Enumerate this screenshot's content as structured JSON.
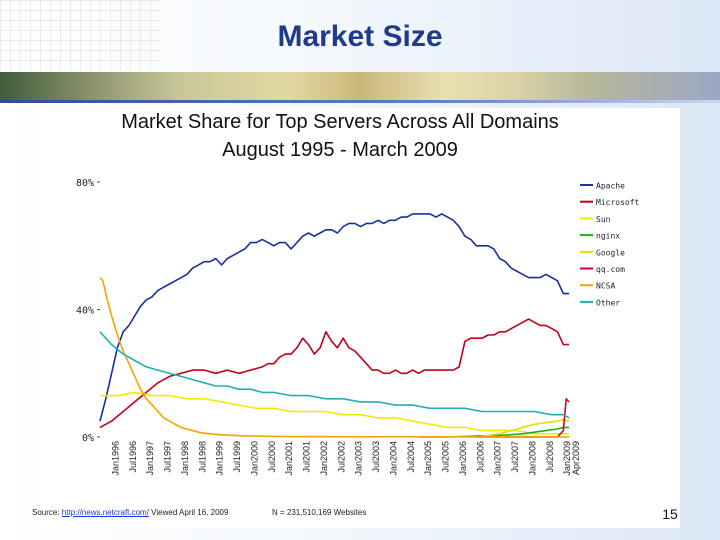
{
  "slide": {
    "title": "Market Size",
    "page_number": "15",
    "source_prefix": "Source: ",
    "source_link": "http://news.netcraft.com/",
    "source_suffix": " Viewed April 16, 2009",
    "sample_note": "N = 231,510,169 Websites"
  },
  "chart_data": {
    "type": "line",
    "title": "Market Share for Top Servers Across All Domains\nAugust 1995 - March 2009",
    "title_lines": [
      "Market Share for Top Servers Across All Domains",
      "August 1995 - March 2009"
    ],
    "ylabel": "",
    "xlabel": "",
    "ylim": [
      0,
      80
    ],
    "yticks": [
      "0%",
      "40%",
      "80%"
    ],
    "ytick_values": [
      0,
      40,
      80
    ],
    "grid": false,
    "legend_position": "right",
    "x_index_range": [
      0,
      163
    ],
    "x_tick_labels": [
      "Jan1996",
      "Jul1996",
      "Jan1997",
      "Jul1997",
      "Jan1998",
      "Jul1998",
      "Jan1999",
      "Jul1999",
      "Jan2000",
      "Jul2000",
      "Jan2001",
      "Jul2001",
      "Jan2002",
      "Jul2002",
      "Jan2003",
      "Jul2003",
      "Jan2004",
      "Jul2004",
      "Jan2005",
      "Jul2005",
      "Jan2006",
      "Jul2006",
      "Jan2007",
      "Jul2007",
      "Jan2008",
      "Jul2008",
      "Jan2009",
      "Apr2009"
    ],
    "x_tick_index": [
      5,
      11,
      17,
      23,
      29,
      35,
      41,
      47,
      53,
      59,
      65,
      71,
      77,
      83,
      89,
      95,
      101,
      107,
      113,
      119,
      125,
      131,
      137,
      143,
      149,
      155,
      161,
      164
    ],
    "series": [
      {
        "name": "Apache",
        "color": "#1a2fa0",
        "points": [
          [
            0,
            5
          ],
          [
            2,
            12
          ],
          [
            4,
            20
          ],
          [
            6,
            28
          ],
          [
            8,
            33
          ],
          [
            10,
            35
          ],
          [
            12,
            38
          ],
          [
            14,
            41
          ],
          [
            16,
            43
          ],
          [
            18,
            44
          ],
          [
            20,
            46
          ],
          [
            22,
            47
          ],
          [
            24,
            48
          ],
          [
            26,
            49
          ],
          [
            28,
            50
          ],
          [
            30,
            51
          ],
          [
            32,
            53
          ],
          [
            34,
            54
          ],
          [
            36,
            55
          ],
          [
            38,
            55
          ],
          [
            40,
            56
          ],
          [
            42,
            54
          ],
          [
            44,
            56
          ],
          [
            46,
            57
          ],
          [
            48,
            58
          ],
          [
            50,
            59
          ],
          [
            52,
            61
          ],
          [
            54,
            61
          ],
          [
            56,
            62
          ],
          [
            58,
            61
          ],
          [
            60,
            60
          ],
          [
            62,
            61
          ],
          [
            64,
            61
          ],
          [
            66,
            59
          ],
          [
            68,
            61
          ],
          [
            70,
            63
          ],
          [
            72,
            64
          ],
          [
            74,
            63
          ],
          [
            76,
            64
          ],
          [
            78,
            65
          ],
          [
            80,
            65
          ],
          [
            82,
            64
          ],
          [
            84,
            66
          ],
          [
            86,
            67
          ],
          [
            88,
            67
          ],
          [
            90,
            66
          ],
          [
            92,
            67
          ],
          [
            94,
            67
          ],
          [
            96,
            68
          ],
          [
            98,
            67
          ],
          [
            100,
            68
          ],
          [
            102,
            68
          ],
          [
            104,
            69
          ],
          [
            106,
            69
          ],
          [
            108,
            70
          ],
          [
            110,
            70
          ],
          [
            112,
            70
          ],
          [
            114,
            70
          ],
          [
            116,
            69
          ],
          [
            118,
            70
          ],
          [
            120,
            69
          ],
          [
            122,
            68
          ],
          [
            124,
            66
          ],
          [
            126,
            63
          ],
          [
            128,
            62
          ],
          [
            130,
            60
          ],
          [
            132,
            60
          ],
          [
            134,
            60
          ],
          [
            136,
            59
          ],
          [
            138,
            56
          ],
          [
            140,
            55
          ],
          [
            142,
            53
          ],
          [
            144,
            52
          ],
          [
            146,
            51
          ],
          [
            148,
            50
          ],
          [
            150,
            50
          ],
          [
            152,
            50
          ],
          [
            154,
            51
          ],
          [
            156,
            50
          ],
          [
            158,
            49
          ],
          [
            160,
            45
          ],
          [
            162,
            45
          ]
        ]
      },
      {
        "name": "Microsoft",
        "color": "#c0001a",
        "points": [
          [
            0,
            3
          ],
          [
            4,
            5
          ],
          [
            8,
            8
          ],
          [
            12,
            11
          ],
          [
            16,
            14
          ],
          [
            20,
            17
          ],
          [
            24,
            19
          ],
          [
            28,
            20
          ],
          [
            32,
            21
          ],
          [
            36,
            21
          ],
          [
            40,
            20
          ],
          [
            44,
            21
          ],
          [
            48,
            20
          ],
          [
            52,
            21
          ],
          [
            56,
            22
          ],
          [
            58,
            23
          ],
          [
            60,
            23
          ],
          [
            62,
            25
          ],
          [
            64,
            26
          ],
          [
            66,
            26
          ],
          [
            68,
            28
          ],
          [
            70,
            31
          ],
          [
            72,
            29
          ],
          [
            74,
            26
          ],
          [
            76,
            28
          ],
          [
            78,
            33
          ],
          [
            80,
            30
          ],
          [
            82,
            28
          ],
          [
            84,
            31
          ],
          [
            86,
            28
          ],
          [
            88,
            27
          ],
          [
            90,
            25
          ],
          [
            92,
            23
          ],
          [
            94,
            21
          ],
          [
            96,
            21
          ],
          [
            98,
            20
          ],
          [
            100,
            20
          ],
          [
            102,
            21
          ],
          [
            104,
            20
          ],
          [
            106,
            20
          ],
          [
            108,
            21
          ],
          [
            110,
            20
          ],
          [
            112,
            21
          ],
          [
            114,
            21
          ],
          [
            116,
            21
          ],
          [
            118,
            21
          ],
          [
            120,
            21
          ],
          [
            122,
            21
          ],
          [
            124,
            22
          ],
          [
            126,
            30
          ],
          [
            128,
            31
          ],
          [
            130,
            31
          ],
          [
            132,
            31
          ],
          [
            134,
            32
          ],
          [
            136,
            32
          ],
          [
            138,
            33
          ],
          [
            140,
            33
          ],
          [
            142,
            34
          ],
          [
            144,
            35
          ],
          [
            146,
            36
          ],
          [
            148,
            37
          ],
          [
            150,
            36
          ],
          [
            152,
            35
          ],
          [
            154,
            35
          ],
          [
            156,
            34
          ],
          [
            158,
            33
          ],
          [
            160,
            29
          ],
          [
            162,
            29
          ]
        ]
      },
      {
        "name": "Sun",
        "color": "#f0ea00",
        "points": [
          [
            0,
            13
          ],
          [
            6,
            13
          ],
          [
            12,
            14
          ],
          [
            18,
            13
          ],
          [
            24,
            13
          ],
          [
            30,
            12
          ],
          [
            36,
            12
          ],
          [
            42,
            11
          ],
          [
            48,
            10
          ],
          [
            54,
            9
          ],
          [
            60,
            9
          ],
          [
            66,
            8
          ],
          [
            72,
            8
          ],
          [
            78,
            8
          ],
          [
            84,
            7
          ],
          [
            90,
            7
          ],
          [
            96,
            6
          ],
          [
            102,
            6
          ],
          [
            108,
            5
          ],
          [
            114,
            4
          ],
          [
            120,
            3
          ],
          [
            126,
            3
          ],
          [
            132,
            2
          ],
          [
            138,
            2
          ],
          [
            144,
            2
          ],
          [
            150,
            1
          ],
          [
            156,
            1
          ],
          [
            162,
            1
          ]
        ]
      },
      {
        "name": "nginx",
        "color": "#19b219",
        "points": [
          [
            110,
            0
          ],
          [
            120,
            0
          ],
          [
            130,
            0.3
          ],
          [
            140,
            0.6
          ],
          [
            146,
            1
          ],
          [
            150,
            1.5
          ],
          [
            154,
            2
          ],
          [
            158,
            2.5
          ],
          [
            160,
            3
          ],
          [
            162,
            3
          ]
        ]
      },
      {
        "name": "Google",
        "color": "#e0e000",
        "points": [
          [
            130,
            0
          ],
          [
            138,
            1
          ],
          [
            142,
            2
          ],
          [
            146,
            3
          ],
          [
            150,
            4
          ],
          [
            154,
            4.5
          ],
          [
            158,
            5
          ],
          [
            160,
            5.5
          ],
          [
            162,
            5
          ]
        ]
      },
      {
        "name": "qq.com",
        "color": "#d2002d",
        "points": [
          [
            130,
            0
          ],
          [
            140,
            0
          ],
          [
            150,
            0
          ],
          [
            158,
            0
          ],
          [
            160,
            2
          ],
          [
            161,
            12
          ],
          [
            162,
            11
          ]
        ]
      },
      {
        "name": "NCSA",
        "color": "#f5a300",
        "points": [
          [
            0,
            50
          ],
          [
            1,
            49
          ],
          [
            2,
            45
          ],
          [
            4,
            38
          ],
          [
            6,
            32
          ],
          [
            8,
            27
          ],
          [
            10,
            23
          ],
          [
            12,
            19
          ],
          [
            14,
            15
          ],
          [
            16,
            12
          ],
          [
            18,
            10
          ],
          [
            20,
            8
          ],
          [
            22,
            6
          ],
          [
            24,
            5
          ],
          [
            26,
            4
          ],
          [
            28,
            3
          ],
          [
            30,
            2.5
          ],
          [
            32,
            2
          ],
          [
            34,
            1.5
          ],
          [
            36,
            1.2
          ],
          [
            40,
            0.8
          ],
          [
            48,
            0.4
          ],
          [
            60,
            0.2
          ],
          [
            80,
            0.1
          ],
          [
            162,
            0
          ]
        ]
      },
      {
        "name": "Other",
        "color": "#1fb0b8",
        "points": [
          [
            0,
            33
          ],
          [
            4,
            29
          ],
          [
            8,
            26
          ],
          [
            12,
            24
          ],
          [
            16,
            22
          ],
          [
            20,
            21
          ],
          [
            24,
            20
          ],
          [
            28,
            19
          ],
          [
            32,
            18
          ],
          [
            36,
            17
          ],
          [
            40,
            16
          ],
          [
            44,
            16
          ],
          [
            48,
            15
          ],
          [
            52,
            15
          ],
          [
            56,
            14
          ],
          [
            60,
            14
          ],
          [
            66,
            13
          ],
          [
            72,
            13
          ],
          [
            78,
            12
          ],
          [
            84,
            12
          ],
          [
            90,
            11
          ],
          [
            96,
            11
          ],
          [
            102,
            10
          ],
          [
            108,
            10
          ],
          [
            114,
            9
          ],
          [
            120,
            9
          ],
          [
            126,
            9
          ],
          [
            132,
            8
          ],
          [
            138,
            8
          ],
          [
            144,
            8
          ],
          [
            150,
            8
          ],
          [
            156,
            7
          ],
          [
            160,
            7
          ],
          [
            162,
            6
          ]
        ]
      }
    ],
    "legend": [
      "Apache",
      "Microsoft",
      "Sun",
      "nginx",
      "Google",
      "qq.com",
      "NCSA",
      "Other"
    ]
  }
}
